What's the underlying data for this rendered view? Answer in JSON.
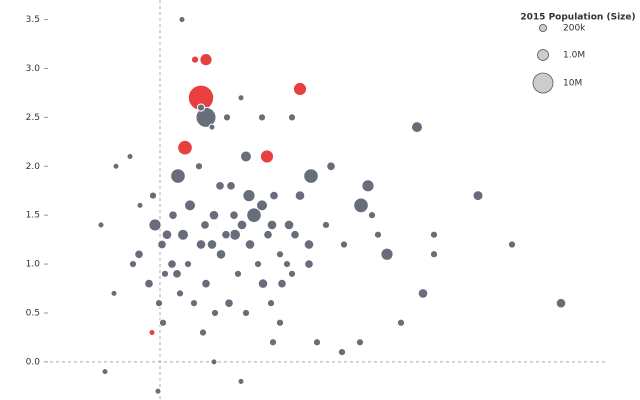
{
  "chart_data": {
    "type": "bubble",
    "xlim": [
      -1.1,
      4.8
    ],
    "ylim": [
      -0.39,
      3.7
    ],
    "yticks": [
      {
        "value": 0,
        "label": "0.0"
      },
      0.5,
      {
        "value": 1,
        "label": "1.0"
      },
      1.5,
      {
        "value": 2,
        "label": "2.0"
      },
      2.5,
      {
        "value": 3,
        "label": "3.0"
      },
      3.5
    ],
    "ref_lines": {
      "x": 0,
      "y": 0
    },
    "legend": {
      "title": "2015 Population (Size)",
      "sizes": [
        0.2,
        1,
        10
      ],
      "labels": [
        "200k",
        "1.0M",
        "10M"
      ],
      "color": "#cccccc"
    },
    "series": [
      {
        "color": "#e8403f",
        "x": [
          0.46,
          0.35,
          0.41,
          1.4,
          0.25,
          1.07,
          -0.08
        ],
        "y": [
          3.09,
          3.09,
          2.7,
          2.79,
          2.19,
          2.1,
          0.3
        ],
        "size": [
          1.5,
          0.2,
          25,
          2,
          3,
          2,
          0.1
        ]
      },
      {
        "color": "#676d7a",
        "x": [
          0.22,
          0.81,
          0.46,
          0.67,
          1.02,
          1.32,
          0.52,
          0.41,
          2.57,
          0.86,
          0.18,
          1.51,
          1.71,
          2.08,
          3.18,
          2.01,
          0.94,
          0.89,
          1.02,
          0.3,
          -0.05,
          0.54,
          0.74,
          1.12,
          1.29,
          0.23,
          0.41,
          0.75,
          1.49,
          0.02,
          2.27,
          3.52,
          2.74,
          2.74,
          2.63,
          4.01,
          2.41,
          -0.21,
          -0.27,
          0.17,
          0.46,
          1.03,
          1.22,
          0.34,
          0.69,
          1.2,
          0.03,
          0.54,
          1.57,
          1.82,
          0.81,
          -0.55,
          -0.02,
          -0.46,
          -0.59,
          -0.44,
          -0.3,
          0.39,
          0.6,
          0.71,
          1.14,
          1.66,
          1.84,
          2.18,
          2.12,
          1.4,
          0.82,
          0.61,
          0.12,
          -0.11,
          0.05,
          0.28,
          0.98,
          0.9,
          1.11,
          0.86,
          0.55,
          0.2,
          1.13,
          2.0,
          0.43,
          1.27,
          1.49,
          -0.2,
          -0.07,
          0.66,
          1.08,
          1.35,
          0.45,
          0.13,
          0.07,
          0.52,
          1.2,
          0.78,
          1.32,
          -0.01
        ],
        "y": [
          3.5,
          2.7,
          2.5,
          2.5,
          2.5,
          2.5,
          2.4,
          2.6,
          2.4,
          2.1,
          1.9,
          1.9,
          2.0,
          1.8,
          1.7,
          1.6,
          1.5,
          1.7,
          1.6,
          1.6,
          1.4,
          1.5,
          1.5,
          1.4,
          1.4,
          1.3,
          1.2,
          1.3,
          1.2,
          1.2,
          1.1,
          1.2,
          1.3,
          1.1,
          0.7,
          0.6,
          0.4,
          1.1,
          1.0,
          0.9,
          0.8,
          0.8,
          0.8,
          0.6,
          0.6,
          0.4,
          0.4,
          0,
          0.2,
          0.1,
          -0.2,
          -0.1,
          -0.3,
          0.7,
          1.4,
          2.0,
          2.1,
          2.0,
          1.8,
          1.8,
          1.7,
          1.4,
          1.2,
          1.3,
          1.5,
          1.7,
          1.4,
          1.1,
          1.0,
          0.8,
          0.9,
          1.0,
          1.0,
          1.2,
          0.6,
          0.5,
          0.5,
          0.7,
          0.2,
          0.2,
          0.3,
          1.0,
          1.0,
          1.6,
          1.7,
          1.3,
          1.3,
          1.3,
          1.4,
          1.5,
          1.3,
          1.2,
          1.1,
          0.9,
          0.9,
          0.6
        ],
        "size": [
          0.1,
          0.1,
          10,
          0.2,
          0.2,
          0.2,
          0.1,
          0.2,
          1,
          1,
          3,
          3,
          0.4,
          1.5,
          0.7,
          3,
          3,
          1.5,
          1,
          1,
          1.5,
          0.6,
          0.4,
          0.6,
          0.6,
          1,
          0.6,
          1,
          0.6,
          0.4,
          1.5,
          0.2,
          0.2,
          0.2,
          0.6,
          0.6,
          0.2,
          0.4,
          0.2,
          0.4,
          0.4,
          0.6,
          0.4,
          0.2,
          0.4,
          0.2,
          0.2,
          0.1,
          0.2,
          0.2,
          0.1,
          0.1,
          0.1,
          0.1,
          0.1,
          0.1,
          0.1,
          0.2,
          0.4,
          0.4,
          0.4,
          0.2,
          0.2,
          0.2,
          0.2,
          0.6,
          0.6,
          0.6,
          0.4,
          0.4,
          0.2,
          0.2,
          0.2,
          0.6,
          0.2,
          0.2,
          0.2,
          0.2,
          0.2,
          0.2,
          0.2,
          0.2,
          0.4,
          0.1,
          0.2,
          0.4,
          0.4,
          0.4,
          0.4,
          0.4,
          0.6,
          0.6,
          0.2,
          0.2,
          0.2,
          0.2
        ]
      }
    ]
  }
}
